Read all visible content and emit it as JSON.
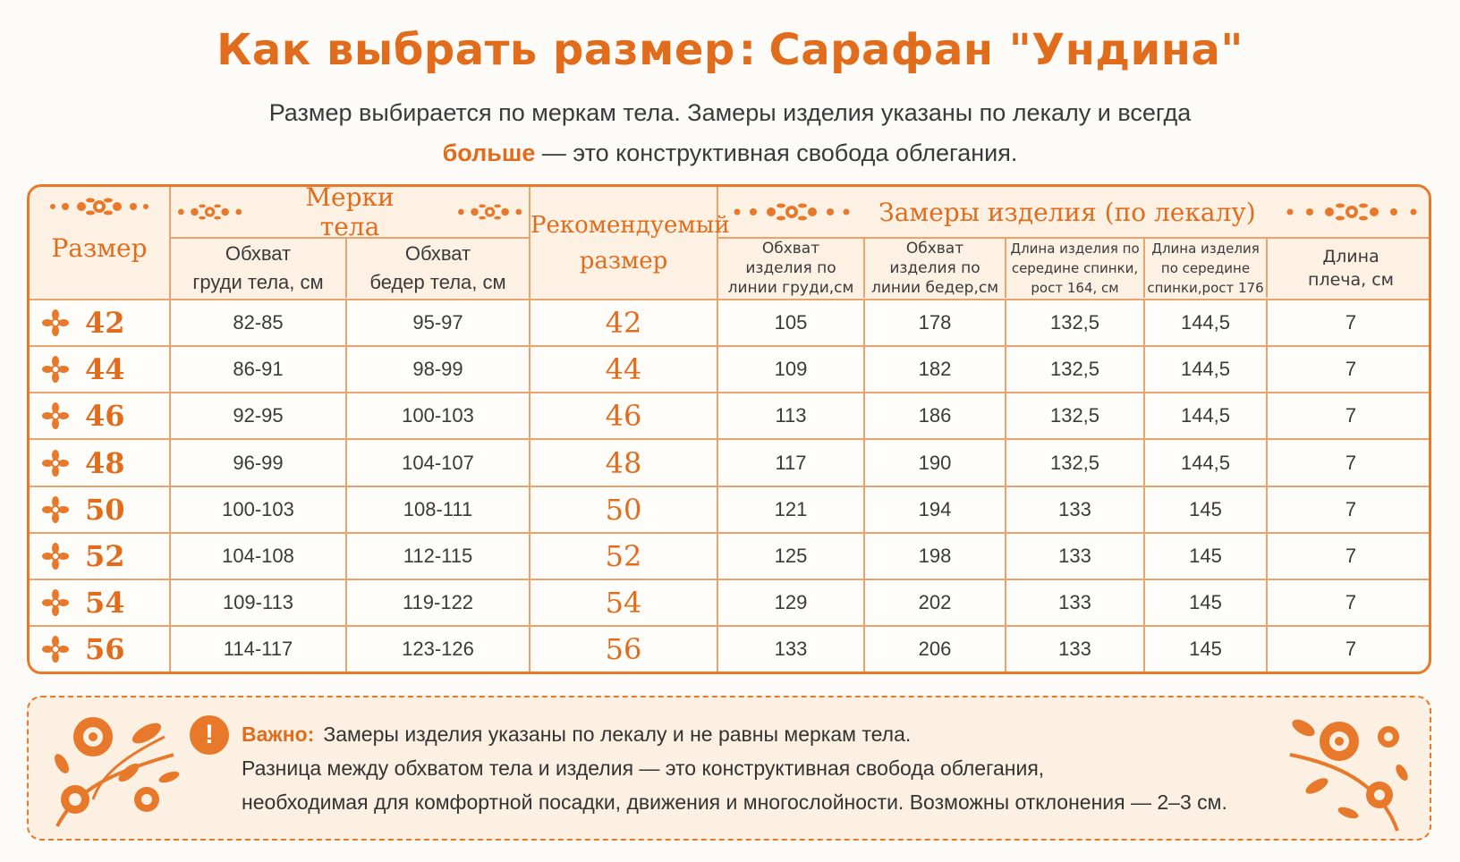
{
  "title": {
    "main": "Как выбрать размер",
    "separator": ":",
    "product": "Сарафан \"Ундина\""
  },
  "subtitle": {
    "line1": "Размер выбирается по меркам тела. Замеры изделия указаны по лекалу и всегда",
    "highlight": "больше",
    "line2_rest": " — это конструктивная свобода облегания."
  },
  "table": {
    "col_size": "Размер",
    "group_body": "Мерки тела",
    "body_chest": [
      "Обхват",
      "груди тела, см"
    ],
    "body_hips": [
      "Обхват",
      "бедер тела, см"
    ],
    "col_recommended": [
      "Рекомендуемый",
      "размер"
    ],
    "group_garment": "Замеры изделия (по лекалу)",
    "garment_chest": [
      "Обхват",
      "изделия по",
      "линии груди,см"
    ],
    "garment_hips": [
      "Обхват",
      "изделия по",
      "линии бедер,см"
    ],
    "length_164": [
      "Длина изделия по",
      "середине спинки,",
      "рост 164, см"
    ],
    "length_176": [
      "Длина изделия",
      "по середине",
      "спинки,рост 176"
    ],
    "shoulder": [
      "Длина",
      "плеча, см"
    ],
    "rows": [
      {
        "size": "42",
        "chest": "82-85",
        "hips": "95-97",
        "rec": "42",
        "g_chest": "105",
        "g_hips": "178",
        "len164": "132,5",
        "len176": "144,5",
        "shoulder": "7"
      },
      {
        "size": "44",
        "chest": "86-91",
        "hips": "98-99",
        "rec": "44",
        "g_chest": "109",
        "g_hips": "182",
        "len164": "132,5",
        "len176": "144,5",
        "shoulder": "7"
      },
      {
        "size": "46",
        "chest": "92-95",
        "hips": "100-103",
        "rec": "46",
        "g_chest": "113",
        "g_hips": "186",
        "len164": "132,5",
        "len176": "144,5",
        "shoulder": "7"
      },
      {
        "size": "48",
        "chest": "96-99",
        "hips": "104-107",
        "rec": "48",
        "g_chest": "117",
        "g_hips": "190",
        "len164": "132,5",
        "len176": "144,5",
        "shoulder": "7"
      },
      {
        "size": "50",
        "chest": "100-103",
        "hips": "108-111",
        "rec": "50",
        "g_chest": "121",
        "g_hips": "194",
        "len164": "133",
        "len176": "145",
        "shoulder": "7"
      },
      {
        "size": "52",
        "chest": "104-108",
        "hips": "112-115",
        "rec": "52",
        "g_chest": "125",
        "g_hips": "198",
        "len164": "133",
        "len176": "145",
        "shoulder": "7"
      },
      {
        "size": "54",
        "chest": "109-113",
        "hips": "119-122",
        "rec": "54",
        "g_chest": "129",
        "g_hips": "202",
        "len164": "133",
        "len176": "145",
        "shoulder": "7"
      },
      {
        "size": "56",
        "chest": "114-117",
        "hips": "123-126",
        "rec": "56",
        "g_chest": "133",
        "g_hips": "206",
        "len164": "133",
        "len176": "145",
        "shoulder": "7"
      }
    ]
  },
  "note": {
    "icon": "exclamation-icon",
    "label": "Важно:",
    "line1": "Замеры изделия указаны по лекалу и не равны меркам тела.",
    "line2": "Разница между обхватом тела и изделия — это конструктивная свобода облегания,",
    "line3": "необходимая для комфортной посадки, движения и многослойности. Возможны отклонения — 2–3 см."
  },
  "colors": {
    "accent": "#e06c1c",
    "border": "#e8782a",
    "grid": "#eba26c",
    "header_bg": "#fdf1e4",
    "note_bg": "#fcf0e3"
  }
}
